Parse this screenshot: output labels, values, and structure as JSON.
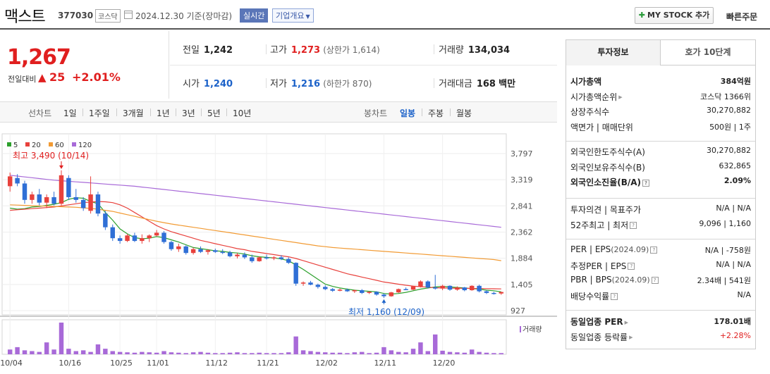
{
  "header": {
    "name": "맥스트",
    "code": "377030",
    "market": "코스닥",
    "date": "2024.12.30  기준(장마감)",
    "realtime": "실시간",
    "company_info": "기업개요",
    "mystock": "MY STOCK 추가",
    "quick_order": "빠른주문"
  },
  "price": {
    "current": "1,267",
    "change_label": "전일대비",
    "change_arrow": "▲",
    "change": "25",
    "rate": "+2.01%"
  },
  "quote": {
    "prev_close_label": "전일",
    "prev_close": "1,242",
    "high_label": "고가",
    "high": "1,273",
    "upper_limit": "(상한가 1,614)",
    "volume_label": "거래량",
    "volume": "134,034",
    "open_label": "시가",
    "open": "1,240",
    "low_label": "저가",
    "low": "1,216",
    "lower_limit": "(하한가 870)",
    "amount_label": "거래대금",
    "amount": "168",
    "amount_unit": "백만"
  },
  "chart_tabs": {
    "line_label": "선차트",
    "line_items": [
      "1일",
      "1주일",
      "3개월",
      "1년",
      "3년",
      "5년",
      "10년"
    ],
    "candle_label": "봉차트",
    "candle_items": [
      "일봉",
      "주봉",
      "월봉"
    ],
    "candle_active": "일봉"
  },
  "chart_data": {
    "type": "candlestick",
    "legend": [
      {
        "name": "5",
        "color": "#2ca02c"
      },
      {
        "name": "20",
        "color": "#e8413c"
      },
      {
        "name": "60",
        "color": "#f29b34"
      },
      {
        "name": "120",
        "color": "#a86ad8"
      }
    ],
    "y_ticks": [
      "3,797",
      "3,319",
      "2,841",
      "2,362",
      "1,884",
      "1,405",
      "927"
    ],
    "ylim": [
      927,
      3797
    ],
    "x_ticks": [
      "10/04",
      "10/16",
      "10/25",
      "11/01",
      "11/12",
      "11/21",
      "12/02",
      "12/11",
      "12/20"
    ],
    "annotation_high": "최고 3,490 (10/14)",
    "annotation_low": "최저 1,160 (12/09)",
    "volume_label": "거래량",
    "colors": {
      "up": "#e8413c",
      "down": "#2f6fd6",
      "volume": "#a86ad8"
    },
    "candles": [
      [
        3200,
        3450,
        3100,
        3380
      ],
      [
        3350,
        3420,
        3200,
        3250
      ],
      [
        3250,
        3300,
        2880,
        2950
      ],
      [
        2950,
        3100,
        2880,
        3050
      ],
      [
        3050,
        3150,
        2850,
        2900
      ],
      [
        2900,
        3050,
        2800,
        3000
      ],
      [
        3000,
        3100,
        2850,
        2880
      ],
      [
        2880,
        3490,
        2850,
        3400
      ],
      [
        3350,
        3400,
        2950,
        3000
      ],
      [
        3000,
        3150,
        2900,
        2950
      ],
      [
        2950,
        3000,
        2750,
        2800
      ],
      [
        2750,
        3380,
        2700,
        3050
      ],
      [
        3050,
        3100,
        2650,
        2700
      ],
      [
        2700,
        2750,
        2400,
        2450
      ],
      [
        2450,
        2500,
        2200,
        2250
      ],
      [
        2250,
        2300,
        2150,
        2200
      ],
      [
        2200,
        2330,
        2180,
        2300
      ],
      [
        2300,
        2350,
        2180,
        2200
      ],
      [
        2200,
        2320,
        2150,
        2250
      ],
      [
        2250,
        2320,
        2180,
        2300
      ],
      [
        2300,
        2400,
        2280,
        2350
      ],
      [
        2350,
        2380,
        2150,
        2180
      ],
      [
        2180,
        2200,
        2020,
        2050
      ],
      [
        2050,
        2150,
        2000,
        2100
      ],
      [
        2100,
        2120,
        1950,
        1980
      ],
      [
        1980,
        2080,
        1950,
        2050
      ],
      [
        2050,
        2100,
        1980,
        2000
      ],
      [
        2000,
        2050,
        1950,
        2030
      ],
      [
        2030,
        2060,
        1980,
        2000
      ],
      [
        2000,
        2050,
        1960,
        1990
      ],
      [
        1990,
        2020,
        1900,
        1920
      ],
      [
        1920,
        1980,
        1880,
        1950
      ],
      [
        1950,
        1990,
        1870,
        1900
      ],
      [
        1900,
        1950,
        1800,
        1830
      ],
      [
        1830,
        1920,
        1820,
        1900
      ],
      [
        1900,
        1950,
        1860,
        1880
      ],
      [
        1880,
        1920,
        1850,
        1900
      ],
      [
        1900,
        1940,
        1850,
        1870
      ],
      [
        1870,
        1900,
        1780,
        1800
      ],
      [
        1800,
        1810,
        1380,
        1420
      ],
      [
        1420,
        1460,
        1380,
        1440
      ],
      [
        1440,
        1470,
        1390,
        1400
      ],
      [
        1400,
        1420,
        1330,
        1360
      ],
      [
        1360,
        1390,
        1300,
        1320
      ],
      [
        1320,
        1340,
        1270,
        1290
      ],
      [
        1290,
        1330,
        1280,
        1310
      ],
      [
        1310,
        1330,
        1270,
        1280
      ],
      [
        1280,
        1310,
        1250,
        1300
      ],
      [
        1300,
        1320,
        1230,
        1250
      ],
      [
        1250,
        1280,
        1230,
        1270
      ],
      [
        1270,
        1280,
        1200,
        1220
      ],
      [
        1220,
        1240,
        1160,
        1190
      ],
      [
        1190,
        1270,
        1180,
        1260
      ],
      [
        1260,
        1330,
        1250,
        1320
      ],
      [
        1320,
        1350,
        1300,
        1310
      ],
      [
        1310,
        1380,
        1300,
        1370
      ],
      [
        1370,
        1480,
        1350,
        1460
      ],
      [
        1460,
        1480,
        1330,
        1350
      ],
      [
        1350,
        1580,
        1310,
        1330
      ],
      [
        1330,
        1400,
        1300,
        1380
      ],
      [
        1380,
        1390,
        1290,
        1310
      ],
      [
        1310,
        1370,
        1290,
        1350
      ],
      [
        1350,
        1360,
        1280,
        1300
      ],
      [
        1300,
        1390,
        1290,
        1380
      ],
      [
        1380,
        1400,
        1260,
        1280
      ],
      [
        1280,
        1300,
        1230,
        1250
      ],
      [
        1250,
        1270,
        1220,
        1240
      ],
      [
        1240,
        1273,
        1216,
        1267
      ]
    ],
    "volume": [
      12,
      18,
      10,
      8,
      6,
      30,
      12,
      80,
      14,
      8,
      10,
      6,
      25,
      14,
      8,
      6,
      5,
      4,
      6,
      5,
      4,
      8,
      5,
      4,
      3,
      5,
      6,
      4,
      3,
      3,
      4,
      5,
      3,
      3,
      4,
      3,
      3,
      3,
      5,
      45,
      10,
      8,
      6,
      5,
      4,
      4,
      3,
      5,
      6,
      3,
      4,
      18,
      10,
      6,
      5,
      14,
      30,
      8,
      50,
      9,
      6,
      5,
      4,
      12,
      6,
      4,
      3,
      3
    ],
    "ma_lines": [
      {
        "name": "5",
        "values": [
          2800,
          2780,
          2790,
          2820,
          2830,
          2850,
          2870,
          2900,
          2960,
          2990,
          2980,
          2920,
          2880,
          2720,
          2580,
          2420,
          2330,
          2260,
          2240,
          2250,
          2280,
          2260,
          2220,
          2180,
          2130,
          2080,
          2060,
          2040,
          2020,
          2010,
          1990,
          1980,
          1960,
          1930,
          1910,
          1900,
          1890,
          1870,
          1840,
          1760,
          1680,
          1590,
          1500,
          1410,
          1370,
          1340,
          1320,
          1300,
          1290,
          1280,
          1270,
          1240,
          1230,
          1240,
          1260,
          1290,
          1320,
          1340,
          1360,
          1370,
          1360,
          1350,
          1340,
          1330,
          1320,
          1300,
          1290,
          1270
        ]
      },
      {
        "name": "20",
        "values": [
          2760,
          2770,
          2780,
          2790,
          2800,
          2810,
          2820,
          2840,
          2860,
          2880,
          2900,
          2910,
          2920,
          2915,
          2900,
          2860,
          2800,
          2720,
          2640,
          2560,
          2480,
          2420,
          2370,
          2330,
          2290,
          2250,
          2210,
          2180,
          2150,
          2120,
          2090,
          2060,
          2040,
          2010,
          1990,
          1970,
          1950,
          1930,
          1910,
          1880,
          1840,
          1800,
          1760,
          1720,
          1680,
          1640,
          1600,
          1570,
          1540,
          1510,
          1480,
          1450,
          1430,
          1410,
          1390,
          1375,
          1365,
          1355,
          1345,
          1340,
          1338,
          1336,
          1334,
          1332,
          1330,
          1328,
          1326,
          1324
        ]
      },
      {
        "name": "60",
        "values": [
          2860,
          2855,
          2850,
          2845,
          2840,
          2835,
          2830,
          2825,
          2820,
          2815,
          2805,
          2795,
          2780,
          2760,
          2740,
          2710,
          2680,
          2650,
          2620,
          2590,
          2560,
          2535,
          2510,
          2490,
          2470,
          2450,
          2430,
          2410,
          2390,
          2370,
          2350,
          2330,
          2310,
          2290,
          2270,
          2250,
          2230,
          2210,
          2190,
          2170,
          2150,
          2130,
          2110,
          2095,
          2080,
          2070,
          2060,
          2050,
          2040,
          2030,
          2020,
          2010,
          2000,
          1990,
          1980,
          1970,
          1960,
          1950,
          1940,
          1930,
          1920,
          1910,
          1900,
          1890,
          1880,
          1870,
          1860,
          1840
        ]
      },
      {
        "name": "120",
        "values": [
          3400,
          3385,
          3370,
          3355,
          3340,
          3325,
          3310,
          3300,
          3290,
          3280,
          3270,
          3260,
          3250,
          3240,
          3230,
          3220,
          3210,
          3200,
          3185,
          3170,
          3155,
          3140,
          3125,
          3110,
          3095,
          3080,
          3065,
          3050,
          3035,
          3020,
          3005,
          2990,
          2975,
          2960,
          2945,
          2930,
          2915,
          2900,
          2885,
          2870,
          2855,
          2840,
          2825,
          2810,
          2795,
          2780,
          2765,
          2750,
          2735,
          2720,
          2705,
          2690,
          2675,
          2660,
          2645,
          2630,
          2615,
          2600,
          2585,
          2570,
          2555,
          2540,
          2525,
          2510,
          2495,
          2480,
          2465,
          2450
        ]
      }
    ]
  },
  "right_panel": {
    "tab_info": "투자정보",
    "tab_hoga": "호가 10단계",
    "rows1": [
      {
        "label": "시가총액",
        "value": "384억원",
        "bold": true
      },
      {
        "label": "시가총액순위",
        "value": "코스닥 1366위",
        "arrow": true
      },
      {
        "label": "상장주식수",
        "value": "30,270,882"
      },
      {
        "label": "액면가 | 매매단위",
        "value": "500원 | 1주"
      }
    ],
    "rows2": [
      {
        "label": "외국인한도주식수(A)",
        "value": "30,270,882"
      },
      {
        "label": "외국인보유주식수(B)",
        "value": "632,865"
      },
      {
        "label": "외국인소진율(B/A)",
        "value": "2.09%",
        "bold": true,
        "q": true
      }
    ],
    "rows3": [
      {
        "label": "투자의견 | 목표주가",
        "value": "N/A | N/A"
      },
      {
        "label": "52주최고 | 최저",
        "value": "9,096 | 1,160",
        "q": true
      }
    ],
    "rows4": [
      {
        "label": "PER | EPS",
        "sub": "(2024.09)",
        "value": "N/A | -758원",
        "q": true
      },
      {
        "label": "추정PER | EPS",
        "value": "N/A | N/A",
        "q": true
      },
      {
        "label": "PBR | BPS",
        "sub": "(2024.09)",
        "value": "2.34배 | 541원",
        "q": true
      },
      {
        "label": "배당수익률",
        "value": "N/A",
        "q": true
      }
    ],
    "rows5": [
      {
        "label": "동일업종 PER",
        "value": "178.01배",
        "bold": true,
        "arrow": true
      },
      {
        "label": "동일업종 등락률",
        "value": "+2.28%",
        "red": true,
        "arrow": true
      }
    ]
  }
}
